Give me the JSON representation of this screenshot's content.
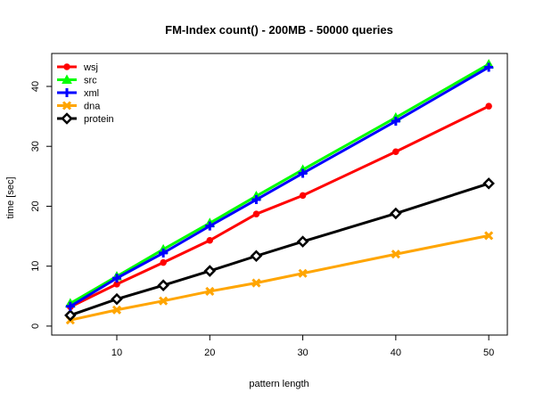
{
  "chart_data": {
    "type": "line",
    "title": "FM-Index count() - 200MB - 50000 queries",
    "xlabel": "pattern length",
    "ylabel": "time [sec]",
    "x": [
      5,
      10,
      15,
      20,
      25,
      30,
      40,
      50
    ],
    "xlim": [
      3,
      52
    ],
    "ylim": [
      -1.5,
      45.5
    ],
    "xticks": [
      10,
      20,
      30,
      40,
      50
    ],
    "yticks": [
      0,
      10,
      20,
      30,
      40
    ],
    "grid": false,
    "legend_position": "top-left",
    "series": [
      {
        "name": "wsj",
        "color": "#ff0000",
        "marker": "dot",
        "values": [
          3.2,
          7.0,
          10.6,
          14.3,
          18.7,
          21.8,
          29.1,
          36.7
        ]
      },
      {
        "name": "src",
        "color": "#00ff00",
        "marker": "triangle",
        "values": [
          3.8,
          8.3,
          12.8,
          17.2,
          21.7,
          26.1,
          34.8,
          43.7
        ]
      },
      {
        "name": "xml",
        "color": "#0000ff",
        "marker": "plus",
        "values": [
          3.3,
          8.0,
          12.2,
          16.7,
          21.1,
          25.5,
          34.2,
          43.2
        ]
      },
      {
        "name": "dna",
        "color": "#ffa500",
        "marker": "cross",
        "values": [
          1.0,
          2.7,
          4.2,
          5.8,
          7.2,
          8.8,
          12.0,
          15.1
        ]
      },
      {
        "name": "protein",
        "color": "#000000",
        "marker": "diamond",
        "values": [
          1.8,
          4.5,
          6.8,
          9.2,
          11.7,
          14.1,
          18.8,
          23.8
        ]
      }
    ]
  }
}
